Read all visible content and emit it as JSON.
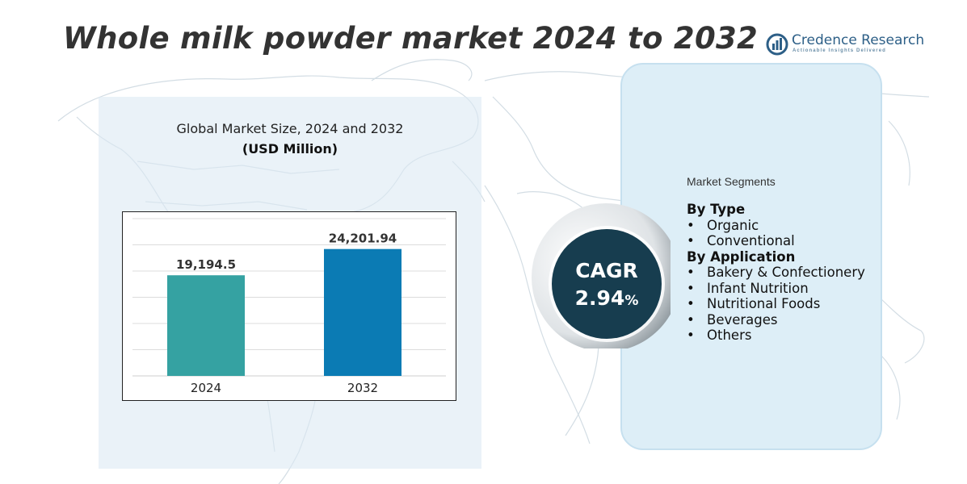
{
  "title": "Whole milk powder market 2024 to 2032",
  "logo": {
    "name": "Credence Research",
    "tagline": "Actionable Insights Delivered"
  },
  "chart_data": {
    "type": "bar",
    "title": "Global Market Size, 2024 and 2032",
    "subtitle": "(USD Million)",
    "categories": [
      "2024",
      "2032"
    ],
    "values": [
      19194.5,
      24201.94
    ],
    "data_labels": [
      "19,194.5",
      "24,201.94"
    ],
    "colors": [
      "#35a2a2",
      "#0b7bb4"
    ],
    "ylim": [
      0,
      30000
    ],
    "grid": true,
    "xlabel": "",
    "ylabel": ""
  },
  "cagr": {
    "label": "CAGR",
    "value": "2.94",
    "unit": "%"
  },
  "segments": {
    "title": "Market Segments",
    "groups": [
      {
        "name": "By Type",
        "items": [
          "Organic",
          "Conventional"
        ]
      },
      {
        "name": "By Application",
        "items": [
          "Bakery & Confectionery",
          "Infant Nutrition",
          "Nutritional Foods",
          "Beverages",
          "Others"
        ]
      }
    ]
  },
  "colors": {
    "panel": "#ddeef7",
    "cagr_circle": "#173d4f",
    "logo": "#2d5f87"
  }
}
